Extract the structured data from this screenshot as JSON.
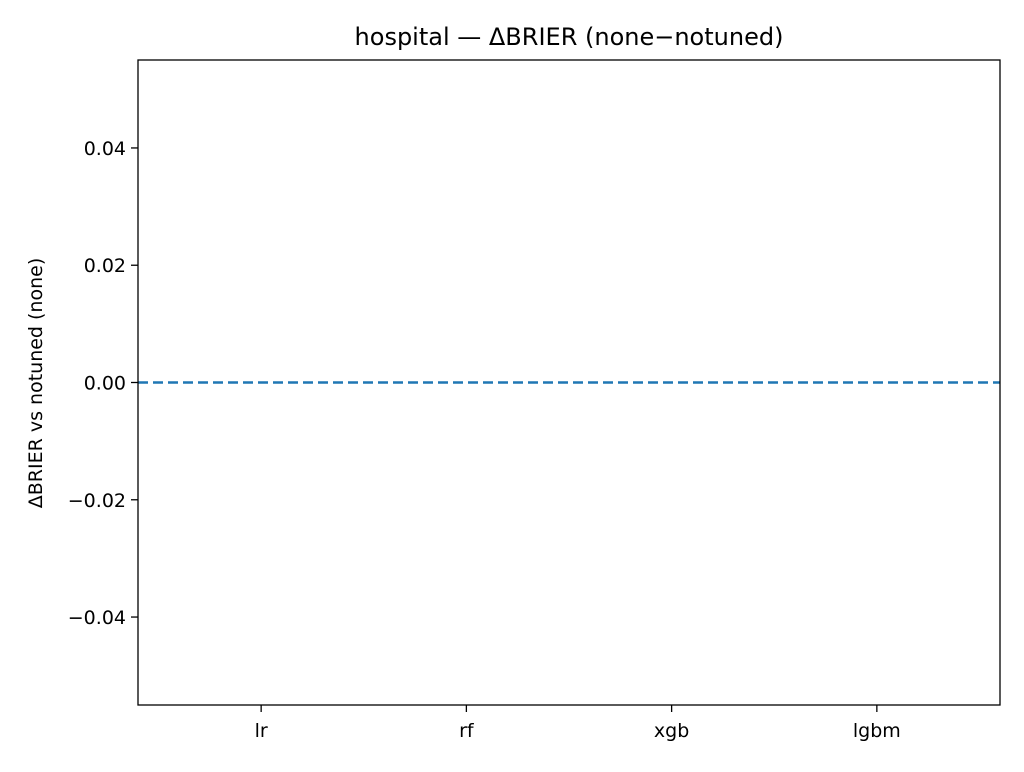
{
  "chart_data": {
    "type": "bar",
    "title": "hospital — ΔBRIER (none−notuned)",
    "xlabel": "",
    "ylabel": "ΔBRIER vs notuned (none)",
    "categories": [
      "lr",
      "rf",
      "xgb",
      "lgbm"
    ],
    "series": [
      {
        "values": [
          0,
          0,
          0,
          0
        ]
      }
    ],
    "ylim": [
      -0.055,
      0.055
    ],
    "yticks": [
      -0.04,
      -0.02,
      0.0,
      0.02,
      0.04
    ],
    "ytick_labels": [
      "−0.04",
      "−0.02",
      "0.00",
      "0.02",
      "0.04"
    ],
    "reference_line": {
      "y": 0.0,
      "style": "dashed",
      "color": "#1f77b4"
    },
    "grid": false,
    "legend": "none"
  }
}
